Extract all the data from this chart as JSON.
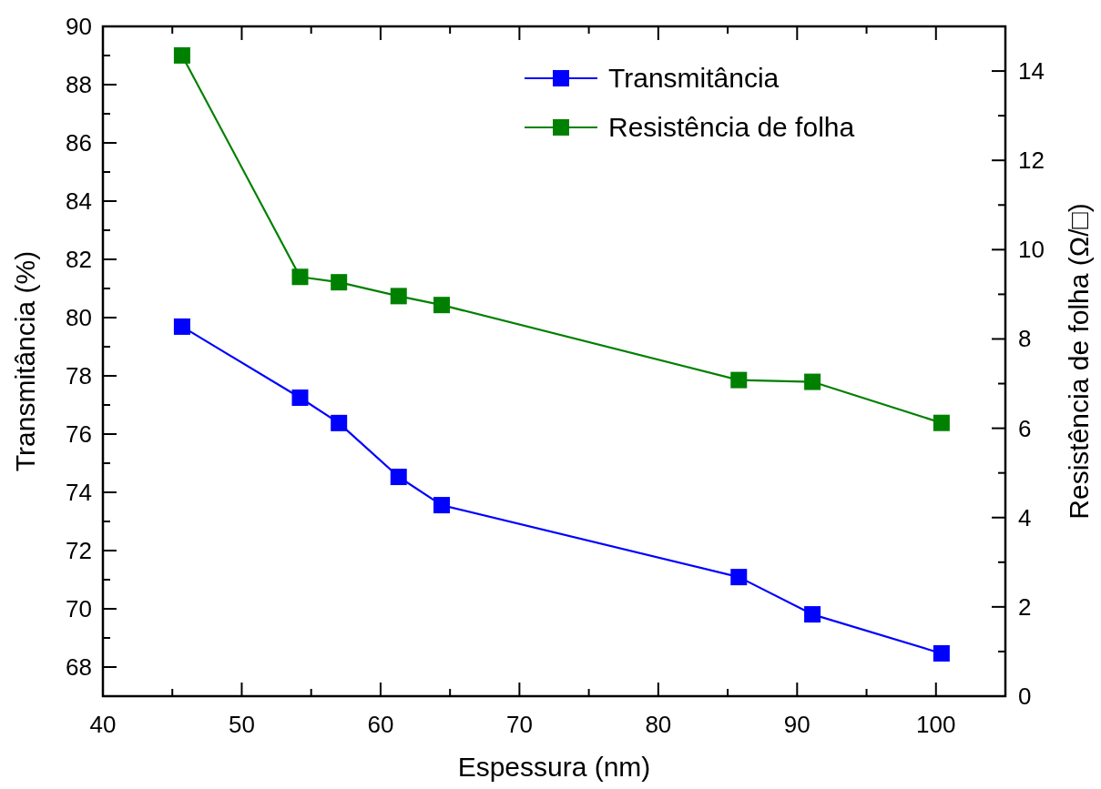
{
  "chart_data": {
    "type": "line",
    "xlabel": "Espessura (nm)",
    "ylabel": "Transmitância (%)",
    "y2label": "Resistência de folha (Ω/□)",
    "xlim": [
      40,
      105
    ],
    "xticks": [
      40,
      50,
      60,
      70,
      80,
      90,
      100
    ],
    "ylim": [
      67,
      90
    ],
    "yticks": [
      68,
      70,
      72,
      74,
      76,
      78,
      80,
      82,
      84,
      86,
      88,
      90
    ],
    "y2lim": [
      0,
      15
    ],
    "y2ticks": [
      0,
      2,
      4,
      6,
      8,
      10,
      12,
      14
    ],
    "x": [
      45.7,
      54.2,
      57.0,
      61.3,
      64.4,
      85.8,
      91.1,
      100.4
    ],
    "series": [
      {
        "name": "Transmitância",
        "color": "#0000ff",
        "values": [
          79.69,
          77.25,
          76.38,
          74.53,
          73.56,
          71.09,
          69.81,
          68.47
        ]
      },
      {
        "name": "Resistência de folha",
        "color": "#008000",
        "axis": "y2",
        "values": [
          14.35,
          9.39,
          9.27,
          8.96,
          8.76,
          7.08,
          7.04,
          6.12
        ]
      }
    ],
    "marker": "square",
    "line_style": "solid",
    "legend": "top right",
    "grid": false
  }
}
